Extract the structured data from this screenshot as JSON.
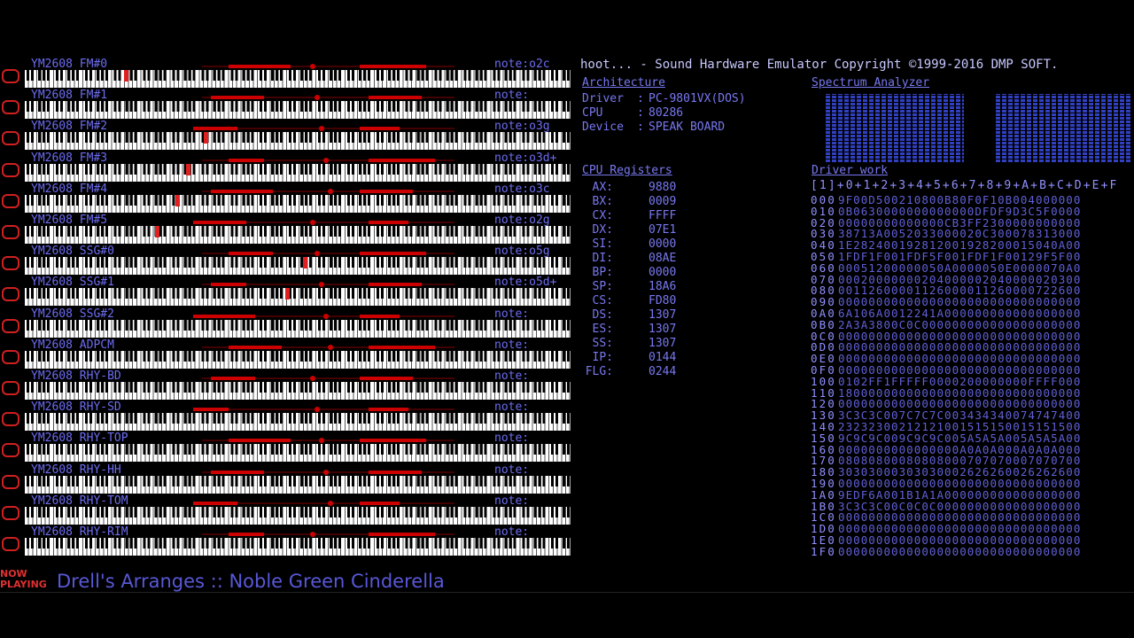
{
  "header": {
    "title": "hoot... - Sound Hardware Emulator Copyright ©1999-2016 DMP SOFT."
  },
  "channels": [
    {
      "name": "YM2608 FM#0",
      "note": "note:o2c"
    },
    {
      "name": "YM2608 FM#1",
      "note": "note:"
    },
    {
      "name": "YM2608 FM#2",
      "note": "note:o3g"
    },
    {
      "name": "YM2608 FM#3",
      "note": "note:o3d+"
    },
    {
      "name": "YM2608 FM#4",
      "note": "note:o3c"
    },
    {
      "name": "YM2608 FM#5",
      "note": "note:o2g"
    },
    {
      "name": "YM2608 SSG#0",
      "note": "note:o5g"
    },
    {
      "name": "YM2608 SSG#1",
      "note": "note:o5d+"
    },
    {
      "name": "YM2608 SSG#2",
      "note": "note:"
    },
    {
      "name": "YM2608 ADPCM",
      "note": "note:"
    },
    {
      "name": "YM2608 RHY-BD",
      "note": "note:"
    },
    {
      "name": "YM2608 RHY-SD",
      "note": "note:"
    },
    {
      "name": "YM2608 RHY-TOP",
      "note": "note:"
    },
    {
      "name": "YM2608 RHY-HH",
      "note": "note:"
    },
    {
      "name": "YM2608 RHY-TOM",
      "note": "note:"
    },
    {
      "name": "YM2608 RHY-RIM",
      "note": "note:"
    }
  ],
  "architecture": {
    "title": "Architecture",
    "rows": [
      [
        "Driver",
        ":",
        "PC-9801VX(DOS)"
      ],
      [
        "CPU",
        ":",
        "80286"
      ],
      [
        "Device",
        ":",
        "SPEAK BOARD"
      ]
    ]
  },
  "registers": {
    "title": "CPU Registers",
    "rows": [
      [
        "AX:",
        "9880"
      ],
      [
        "BX:",
        "0009"
      ],
      [
        "CX:",
        "FFFF"
      ],
      [
        "DX:",
        "07E1"
      ],
      [
        "SI:",
        "0000"
      ],
      [
        "DI:",
        "08AE"
      ],
      [
        "BP:",
        "0000"
      ],
      [
        "SP:",
        "18A6"
      ],
      [
        "CS:",
        "FD80"
      ],
      [
        "DS:",
        "1307"
      ],
      [
        "ES:",
        "1307"
      ],
      [
        "SS:",
        "1307"
      ],
      [
        "IP:",
        "0144"
      ],
      [
        "FLG:",
        "0244"
      ]
    ]
  },
  "spectrum": {
    "title": "Spectrum Analyzer"
  },
  "driver_work": {
    "title": "Driver work",
    "header": "[1]+0+1+2+3+4+5+6+7+8+9+A+B+C+D+E+F",
    "rows": [
      [
        "000",
        "9F00D500210800B80F0F10B004000000"
      ],
      [
        "010",
        "0B0630000000000000DFDF9D3C5F0000"
      ],
      [
        "020",
        "00000000000000CB3FF2300000000000"
      ],
      [
        "030",
        "38713A0052033000020C300078313000"
      ],
      [
        "040",
        "1E282400192812001928200015040A00"
      ],
      [
        "050",
        "1FDF1F001FDF5F001FDF1F00129F5F00"
      ],
      [
        "060",
        "00051200000050A0000050E0000070A0"
      ],
      [
        "070",
        "00020000000204000002040000020300"
      ],
      [
        "080",
        "00112600001126000011260000722600"
      ],
      [
        "090",
        "00000000000000000000000000000000"
      ],
      [
        "0A0",
        "6A106A0012241A000000000000000000"
      ],
      [
        "0B0",
        "2A3A3800C0C000000000000000000000"
      ],
      [
        "0C0",
        "00000000000000000000000000000000"
      ],
      [
        "0D0",
        "00000000000000000000000000000000"
      ],
      [
        "0E0",
        "00000000000000000000000000000000"
      ],
      [
        "0F0",
        "00000000000000000000000000000000"
      ],
      [
        "100",
        "0102FF1FFFFF0000200000000FFFF000"
      ],
      [
        "110",
        "18000000000000000000000000000000"
      ],
      [
        "120",
        "00000000000000000000000000000000"
      ],
      [
        "130",
        "3C3C3C007C7C7C003434340074747400"
      ],
      [
        "140",
        "23232300212121001515150015151500"
      ],
      [
        "150",
        "9C9C9C009C9C9C005A5A5A005A5A5A00"
      ],
      [
        "160",
        "0000000000000000A0A0A000A0A0A000"
      ],
      [
        "170",
        "08080800080808000707070007070700"
      ],
      [
        "180",
        "30303000303030002626260026262600"
      ],
      [
        "190",
        "00000000000000000000000000000000"
      ],
      [
        "1A0",
        "9EDF6A001B1A1A000000000000000000"
      ],
      [
        "1B0",
        "3C3C3C00C0C0C0000000000000000000"
      ],
      [
        "1C0",
        "00000000000000000000000000000000"
      ],
      [
        "1D0",
        "00000000000000000000000000000000"
      ],
      [
        "1E0",
        "00000000000000000000000000000000"
      ],
      [
        "1F0",
        "00000000000000000000000000000000"
      ]
    ]
  },
  "now_playing": {
    "badge": "NOW PLAYING",
    "track": "Drell's Arranges :: Noble Green Cinderella"
  }
}
